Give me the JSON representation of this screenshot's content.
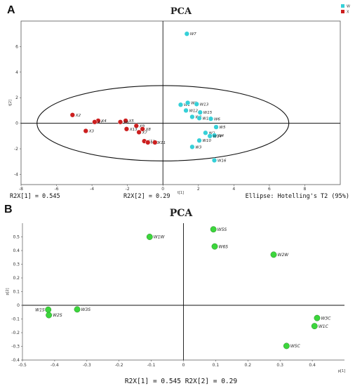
{
  "panels": {
    "a": {
      "label": "A",
      "footer_left": "R2X[1] = 0.545",
      "footer_mid": "R2X[2] = 0.29",
      "footer_right": "Ellipse: Hotelling's T2 (95%)"
    },
    "b": {
      "label": "B",
      "footer": "R2X[1] = 0.545 R2X[2] = 0.29"
    }
  },
  "chart_data": [
    {
      "type": "scatter",
      "title": "PCA",
      "xlabel": "t[1]",
      "ylabel": "t[2]",
      "xlim": [
        -8,
        10
      ],
      "ylim": [
        -4.8,
        8
      ],
      "xticks": [
        -8,
        -6,
        -4,
        -2,
        0,
        2,
        4,
        6,
        8
      ],
      "yticks": [
        -4,
        -2,
        0,
        2,
        4,
        6
      ],
      "grid": false,
      "legend_position": "top-right",
      "ellipse": {
        "label": "Hotelling's T2 (95%)",
        "center": [
          0,
          0
        ],
        "rx": 7.1,
        "ry": 2.95
      },
      "series": [
        {
          "name": "W",
          "color": "#35d0d8",
          "points": [
            {
              "label": "W7",
              "x": 1.35,
              "y": 7.0
            },
            {
              "label": "W1",
              "x": 1.0,
              "y": 1.45
            },
            {
              "label": "W8",
              "x": 1.4,
              "y": 1.6
            },
            {
              "label": "W13",
              "x": 1.9,
              "y": 1.5
            },
            {
              "label": "W12",
              "x": 1.3,
              "y": 1.0
            },
            {
              "label": "W15",
              "x": 2.1,
              "y": 0.85
            },
            {
              "label": "W9",
              "x": 1.65,
              "y": 0.5
            },
            {
              "label": "W11",
              "x": 2.05,
              "y": 0.4
            },
            {
              "label": "W6",
              "x": 2.7,
              "y": 0.35
            },
            {
              "label": "W5",
              "x": 3.0,
              "y": -0.3
            },
            {
              "label": "W2",
              "x": 2.4,
              "y": -0.75
            },
            {
              "label": "W4",
              "x": 2.9,
              "y": -0.95
            },
            {
              "label": "W14",
              "x": 2.65,
              "y": -1.0
            },
            {
              "label": "W10",
              "x": 2.05,
              "y": -1.35
            },
            {
              "label": "W3",
              "x": 1.65,
              "y": -1.85
            },
            {
              "label": "W16",
              "x": 2.9,
              "y": -2.9
            }
          ]
        },
        {
          "name": "X",
          "color": "#cc1f1f",
          "points": [
            {
              "label": "X2",
              "x": -5.1,
              "y": 0.65
            },
            {
              "label": "X4",
              "x": -3.65,
              "y": 0.2
            },
            {
              "label": "X1",
              "x": -3.85,
              "y": 0.1
            },
            {
              "label": "X3",
              "x": -4.35,
              "y": -0.6
            },
            {
              "label": "X5",
              "x": -2.1,
              "y": 0.2
            },
            {
              "label": "X6",
              "x": -2.4,
              "y": 0.1
            },
            {
              "label": "X9",
              "x": -1.5,
              "y": -0.2
            },
            {
              "label": "X13",
              "x": -2.05,
              "y": -0.45
            },
            {
              "label": "X8",
              "x": -1.15,
              "y": -0.45
            },
            {
              "label": "X7",
              "x": -1.35,
              "y": -0.7
            },
            {
              "label": "X12",
              "x": -1.05,
              "y": -1.4
            },
            {
              "label": "X10",
              "x": -0.85,
              "y": -1.5
            },
            {
              "label": "X11",
              "x": -0.45,
              "y": -1.5
            }
          ]
        }
      ]
    },
    {
      "type": "scatter",
      "title": "PCA",
      "xlabel": "p[1]",
      "ylabel": "p[2]",
      "xlim": [
        -0.5,
        0.5
      ],
      "ylim": [
        -0.4,
        0.6
      ],
      "xticks": [
        -0.5,
        -0.4,
        -0.3,
        -0.2,
        -0.1,
        0,
        0.1,
        0.2,
        0.3,
        0.4
      ],
      "yticks": [
        -0.4,
        -0.3,
        -0.2,
        -0.1,
        0,
        0.1,
        0.2,
        0.3,
        0.4,
        0.5
      ],
      "grid": false,
      "series": [
        {
          "color": "#3cd63c",
          "points": [
            {
              "label": "W1W",
              "x": -0.105,
              "y": 0.5
            },
            {
              "label": "W5S",
              "x": 0.093,
              "y": 0.555
            },
            {
              "label": "W6S",
              "x": 0.097,
              "y": 0.43
            },
            {
              "label": "W2W",
              "x": 0.28,
              "y": 0.37
            },
            {
              "label": "W1S",
              "x": -0.42,
              "y": -0.032
            },
            {
              "label": "W2S",
              "x": -0.418,
              "y": -0.072
            },
            {
              "label": "W3S",
              "x": -0.33,
              "y": -0.03
            },
            {
              "label": "W3C",
              "x": 0.415,
              "y": -0.093
            },
            {
              "label": "W1C",
              "x": 0.407,
              "y": -0.152
            },
            {
              "label": "W5C",
              "x": 0.32,
              "y": -0.297
            }
          ]
        }
      ]
    }
  ]
}
